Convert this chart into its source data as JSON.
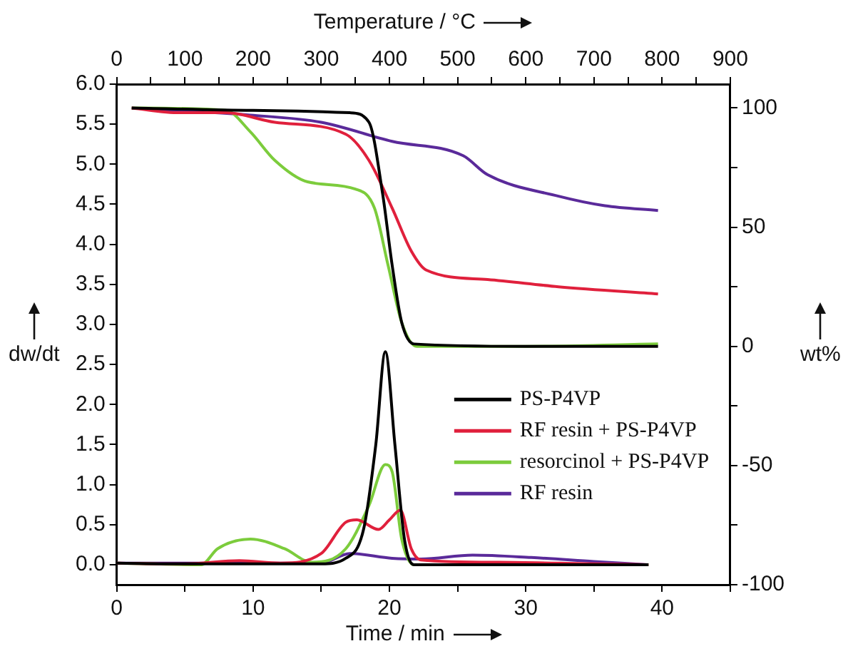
{
  "chart_data": {
    "type": "line",
    "xlabel": "Time / min",
    "x2label": "Temperature / °C",
    "ylabel": "dw/dt",
    "y2label": "wt%",
    "xlim": [
      0,
      45
    ],
    "xticks": [
      0,
      {
        "value": 5,
        "label": null
      },
      10,
      {
        "value": 15,
        "label": null
      },
      20,
      {
        "value": 25,
        "label": null
      },
      30,
      {
        "value": 35,
        "label": null
      },
      40,
      {
        "value": 45,
        "label": null
      }
    ],
    "x2lim": [
      0,
      900
    ],
    "x2ticks": [
      0,
      {
        "value": 50,
        "label": null
      },
      100,
      {
        "value": 150,
        "label": null
      },
      200,
      {
        "value": 250,
        "label": null
      },
      300,
      {
        "value": 350,
        "label": null
      },
      400,
      {
        "value": 450,
        "label": null
      },
      500,
      {
        "value": 550,
        "label": null
      },
      600,
      {
        "value": 650,
        "label": null
      },
      700,
      {
        "value": 750,
        "label": null
      },
      800,
      {
        "value": 850,
        "label": null
      },
      900
    ],
    "ylim": [
      -0.25,
      6
    ],
    "yticks": [
      {
        "value": 0,
        "label": "0.0"
      },
      {
        "value": 0.5,
        "label": "0.5"
      },
      {
        "value": 1,
        "label": "1.0"
      },
      {
        "value": 1.5,
        "label": "1.5"
      },
      {
        "value": 2,
        "label": "2.0"
      },
      {
        "value": 2.5,
        "label": "2.5"
      },
      {
        "value": 3,
        "label": "3.0"
      },
      {
        "value": 3.5,
        "label": "3.5"
      },
      {
        "value": 4,
        "label": "4.0"
      },
      {
        "value": 4.5,
        "label": "4.5"
      },
      {
        "value": 5,
        "label": "5.0"
      },
      {
        "value": 5.5,
        "label": "5.5"
      },
      {
        "value": 6,
        "label": "6.0"
      }
    ],
    "y2lim": [
      -100,
      110
    ],
    "y2ticks": [
      -100,
      {
        "value": -75,
        "label": null
      },
      -50,
      {
        "value": -25,
        "label": null
      },
      0,
      {
        "value": 25,
        "label": null
      },
      50,
      {
        "value": 75,
        "label": null
      },
      100
    ],
    "marker": "none",
    "legend": "right",
    "series": [
      {
        "name": "PS-P4VP",
        "color": "#000000",
        "x": [
          0,
          5,
          10,
          15,
          16.8,
          18.1,
          19.0,
          19.7,
          20.4,
          21.1,
          21.8,
          25,
          30,
          35,
          39
        ],
        "values": [
          0.02,
          0.01,
          0.01,
          0.01,
          0.08,
          0.44,
          1.5,
          2.66,
          1.5,
          0.32,
          0,
          0,
          0,
          0,
          0
        ]
      },
      {
        "name": "RF resin + PS-P4VP",
        "color": "#e0203c",
        "x": [
          0,
          5,
          9,
          12,
          15,
          16.8,
          17.6,
          19.2,
          20.0,
          20.8,
          21.6,
          22.3,
          28,
          35,
          39
        ],
        "values": [
          0.02,
          0.01,
          0.05,
          0.02,
          0.14,
          0.53,
          0.56,
          0.44,
          0.56,
          0.68,
          0.2,
          0.06,
          0.03,
          0.01,
          0
        ]
      },
      {
        "name": "resorcinol + PS-P4VP",
        "color": "#7ccc3c",
        "x": [
          0,
          6.2,
          7.4,
          9.8,
          12.3,
          14.3,
          16.8,
          18.5,
          19.7,
          20.2,
          20.9,
          21.8,
          30,
          39
        ],
        "values": [
          0.02,
          0,
          0.2,
          0.32,
          0.2,
          0.03,
          0.2,
          0.74,
          1.25,
          1.16,
          0.32,
          0,
          0,
          0
        ]
      },
      {
        "name": "RF resin",
        "color": "#5a2a9a",
        "x": [
          0,
          5,
          10,
          15,
          17.1,
          20.2,
          22.3,
          26.1,
          30.4,
          35,
          38.9
        ],
        "values": [
          0.02,
          0.02,
          0.02,
          0.02,
          0.14,
          0.08,
          0.07,
          0.12,
          0.09,
          0.04,
          0
        ]
      },
      {
        "color": "#000000",
        "axis": "y2",
        "x": [
          1.1,
          10,
          17.1,
          18.5,
          19.5,
          20.2,
          20.9,
          21.8,
          30,
          39.7
        ],
        "values": [
          100,
          99,
          98,
          94,
          64,
          34,
          10,
          1,
          0,
          0
        ]
      },
      {
        "color": "#e0203c",
        "axis": "y2",
        "x": [
          1.1,
          4.6,
          8.0,
          11.6,
          16.8,
          18.5,
          20.2,
          21.6,
          22.7,
          27.2,
          32.4,
          39.7
        ],
        "values": [
          100,
          98,
          98,
          94,
          89,
          78,
          58,
          40,
          32,
          28,
          25,
          22
        ]
      },
      {
        "color": "#7ccc3c",
        "axis": "y2",
        "x": [
          1.1,
          8.0,
          9.8,
          11.6,
          14.0,
          17.5,
          18.9,
          19.9,
          20.9,
          22.0,
          30,
          39.7
        ],
        "values": [
          100,
          99,
          90,
          78,
          69,
          66,
          58,
          34,
          10,
          0,
          0,
          1
        ]
      },
      {
        "color": "#5a2a9a",
        "axis": "y2",
        "x": [
          1.1,
          9.8,
          15.0,
          20.2,
          25.4,
          27.2,
          32.4,
          35.8,
          39.7
        ],
        "values": [
          100,
          97,
          94,
          86,
          80,
          72,
          63,
          59,
          57
        ]
      }
    ]
  }
}
